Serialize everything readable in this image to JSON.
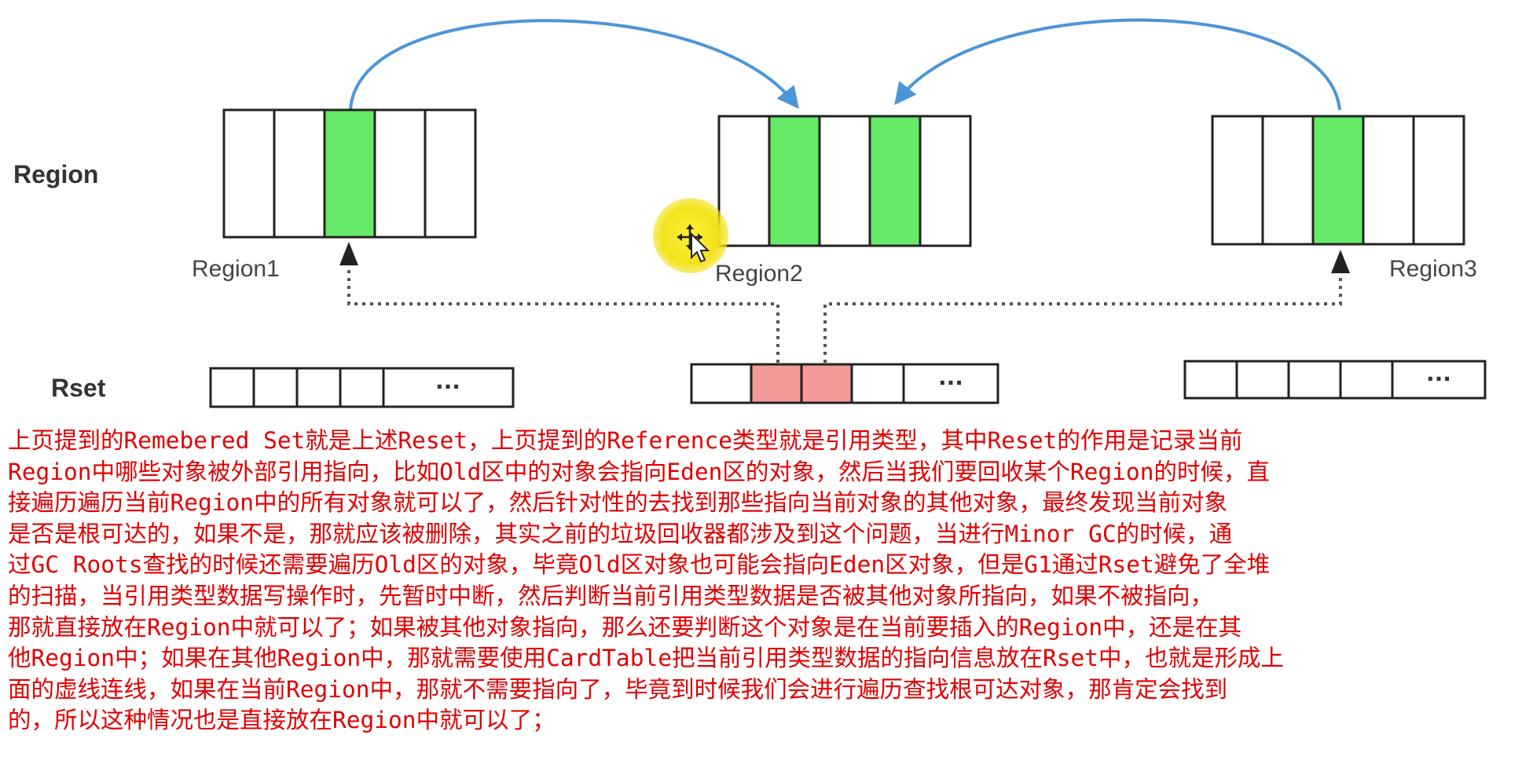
{
  "diagram": {
    "row_labels": {
      "region": "Region",
      "rset": "Rset"
    },
    "regions": [
      {
        "name": "Region1",
        "highlighted_cells": [
          3
        ]
      },
      {
        "name": "Region2",
        "highlighted_cells": [
          2,
          4
        ]
      },
      {
        "name": "Region3",
        "highlighted_cells": [
          3
        ]
      }
    ],
    "rsets": [
      {
        "highlighted_cells": [],
        "ellipsis": "···"
      },
      {
        "highlighted_cells": [
          2,
          3
        ],
        "ellipsis": "···"
      },
      {
        "highlighted_cells": [],
        "ellipsis": "···"
      }
    ],
    "colors": {
      "highlight_green": "#66e966",
      "highlight_pink": "#f49a9a",
      "arrow_blue": "#4d95d8",
      "cursor_halo": "#f2e21a"
    },
    "icons": [
      "move-cursor-icon"
    ]
  },
  "explanation": {
    "lines": [
      "上页提到的Remebered Set就是上述Reset，上页提到的Reference类型就是引用类型，其中Reset的作用是记录当前",
      "Region中哪些对象被外部引用指向，比如Old区中的对象会指向Eden区的对象，然后当我们要回收某个Region的时候，直",
      "接遍历遍历当前Region中的所有对象就可以了，然后针对性的去找到那些指向当前对象的其他对象，最终发现当前对象",
      "是否是根可达的，如果不是，那就应该被删除，其实之前的垃圾回收器都涉及到这个问题，当进行Minor GC的时候，通",
      "过GC Roots查找的时候还需要遍历Old区的对象，毕竟Old区对象也可能会指向Eden区对象，但是G1通过Rset避免了全堆",
      "的扫描，当引用类型数据写操作时，先暂时中断，然后判断当前引用类型数据是否被其他对象所指向，如果不被指向，",
      "那就直接放在Region中就可以了；如果被其他对象指向，那么还要判断这个对象是在当前要插入的Region中，还是在其",
      "他Region中；如果在其他Region中，那就需要使用CardTable把当前引用类型数据的指向信息放在Rset中，也就是形成上",
      "面的虚线连线，如果在当前Region中，那就不需要指向了，毕竟到时候我们会进行遍历查找根可达对象，那肯定会找到",
      "的，所以这种情况也是直接放在Region中就可以了；"
    ]
  }
}
